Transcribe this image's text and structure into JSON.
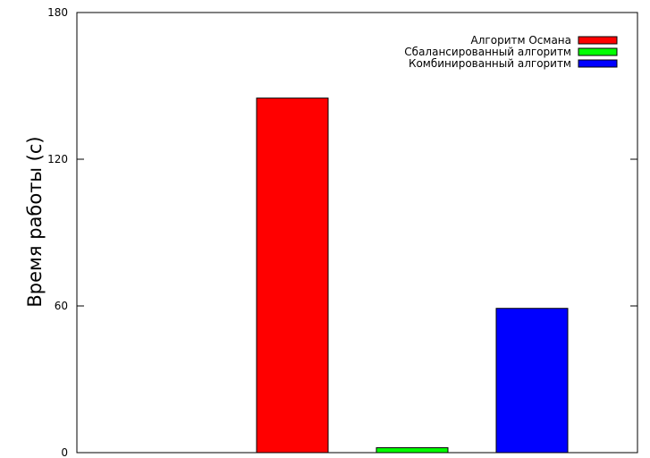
{
  "chart_data": {
    "type": "bar",
    "ylabel": "Время работы (с)",
    "xlabel": "",
    "title": "",
    "ylim": [
      0,
      180
    ],
    "yticks": [
      0,
      60,
      120,
      180
    ],
    "grid": false,
    "legend_position": "top-right",
    "series": [
      {
        "name": "Алгоритм Османа",
        "value": 145,
        "color": "#ff0000"
      },
      {
        "name": "Сбалансированный алгоритм",
        "value": 2,
        "color": "#00ff00"
      },
      {
        "name": "Комбинированный алгоритм",
        "value": 59,
        "color": "#0000ff"
      }
    ]
  }
}
